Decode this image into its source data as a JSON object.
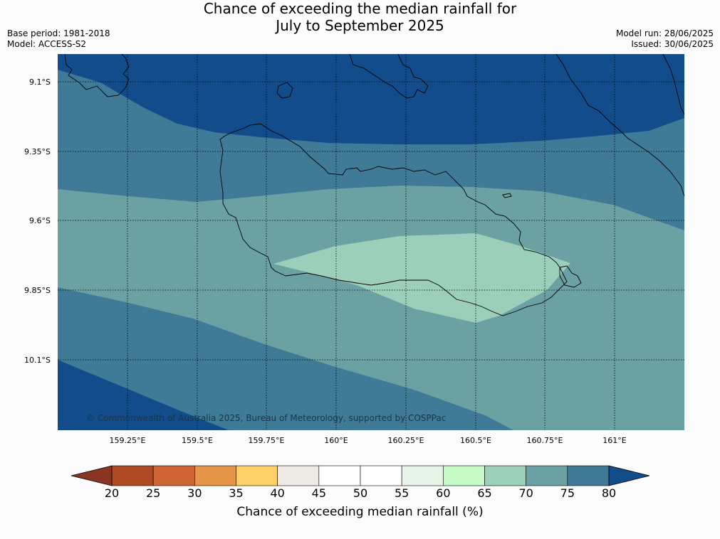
{
  "title_line1": "Chance of exceeding the median rainfall for",
  "title_line2": "July to September 2025",
  "base_period": "Base period: 1981-2018",
  "model": "Model: ACCESS-S2",
  "model_run": "Model run: 28/06/2025",
  "issued": "Issued: 30/06/2025",
  "copyright": "© Commonwealth of Australia 2025, Bureau of Meteorology, supported by COSPPac",
  "lat_labels": [
    "9.1°S",
    "9.35°S",
    "9.6°S",
    "9.85°S",
    "10.1°S"
  ],
  "lon_labels": [
    "159.25°E",
    "159.5°E",
    "159.75°E",
    "160°E",
    "160.25°E",
    "160.5°E",
    "160.75°E",
    "161°E"
  ],
  "colorbar": {
    "ticks": [
      "20",
      "25",
      "30",
      "35",
      "40",
      "45",
      "50",
      "55",
      "60",
      "65",
      "70",
      "75",
      "80"
    ],
    "colors": [
      "#b04a26",
      "#cf6434",
      "#e39447",
      "#ffcf68",
      "#edeae5",
      "#ffffff",
      "#ffffff",
      "#e8f4e8",
      "#c8fbc8",
      "#9ccfb9",
      "#6ba1a3",
      "#3f7a97"
    ],
    "under_color": "#8a3524",
    "over_color": "#124c8a",
    "label": "Chance of exceeding median rainfall (%)"
  },
  "map_colors": {
    "c80": "#124c8a",
    "c75": "#3f7a97",
    "c70": "#6ba1a3",
    "c65": "#9ccfb9"
  }
}
